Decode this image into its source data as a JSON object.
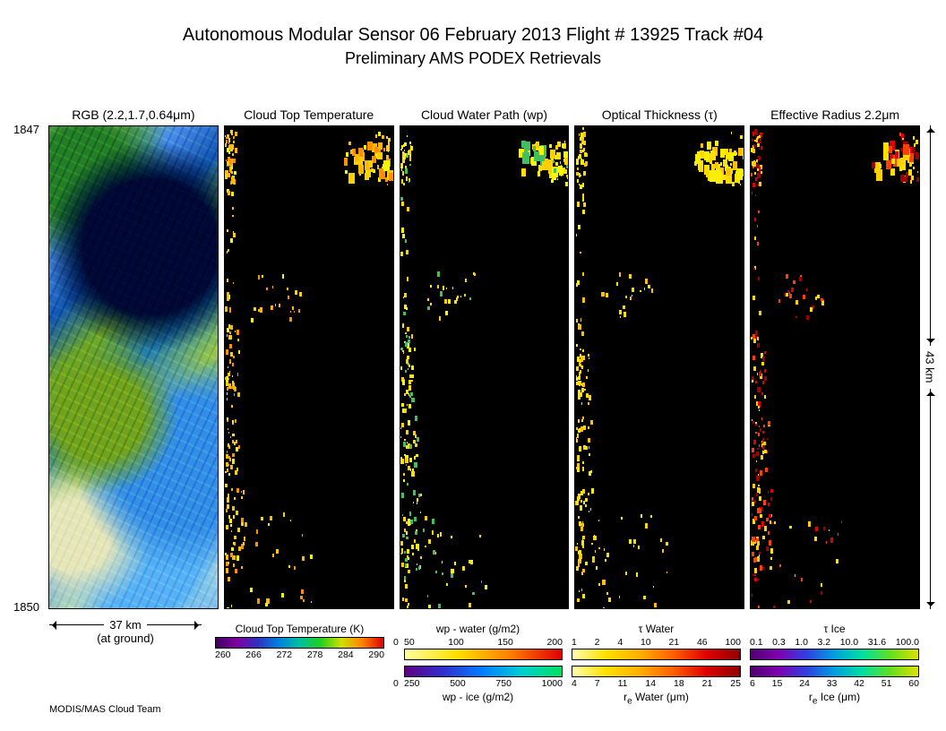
{
  "header": {
    "title": "Autonomous Modular Sensor  06 February 2013  Flight # 13925 Track #04",
    "subtitle": "Preliminary AMS PODEX Retrievals"
  },
  "y_axis": {
    "top_tick": "1847",
    "bottom_tick": "1850"
  },
  "x_scale": {
    "label": "37 km",
    "sublabel": "(at ground)"
  },
  "y_scale": {
    "label": "43 km"
  },
  "footer": "MODIS/MAS Cloud Team",
  "panels": [
    {
      "title": "RGB (2.2,1.7,0.64μm)",
      "kind": "rgb"
    },
    {
      "title": "Cloud Top Temperature",
      "kind": "sparse",
      "palette": "ctt"
    },
    {
      "title": "Cloud Water Path (wp)",
      "kind": "sparse",
      "palette": "wp"
    },
    {
      "title": "Optical Thickness (τ)",
      "kind": "sparse",
      "palette": "tau"
    },
    {
      "title": "Effective Radius 2.2μm",
      "kind": "sparse",
      "palette": "re"
    }
  ],
  "speckle_seed": 13925,
  "speckle_regions": [
    {
      "y": [
        1,
        12
      ],
      "x": [
        0,
        6
      ],
      "density": 35
    },
    {
      "y": [
        1,
        12
      ],
      "x": [
        88,
        100
      ],
      "density": 25
    },
    {
      "y": [
        3,
        10
      ],
      "x": [
        70,
        98
      ],
      "density": 40,
      "big": true
    },
    {
      "y": [
        30,
        40
      ],
      "x": [
        15,
        45
      ],
      "density": 20
    },
    {
      "y": [
        42,
        58
      ],
      "x": [
        0,
        8
      ],
      "density": 30
    },
    {
      "y": [
        60,
        72
      ],
      "x": [
        0,
        10
      ],
      "density": 25
    },
    {
      "y": [
        75,
        92
      ],
      "x": [
        0,
        12
      ],
      "density": 40
    },
    {
      "y": [
        80,
        100
      ],
      "x": [
        12,
        55
      ],
      "density": 25
    },
    {
      "y": [
        0,
        100
      ],
      "x": [
        0,
        5
      ],
      "density": 60
    }
  ],
  "palettes": {
    "ctt": [
      "#ff9000",
      "#ffd000",
      "#f8f800",
      "#ffb800"
    ],
    "wp": [
      "#ffe000",
      "#ffd000",
      "#f8f800",
      "#40c060"
    ],
    "tau": [
      "#ffe000",
      "#ffd800",
      "#f8f000",
      "#ffc000"
    ],
    "re": [
      "#ffe000",
      "#e00000",
      "#a00000",
      "#ff4000",
      "#ffd000"
    ]
  },
  "colorbars": {
    "ctt": {
      "title_bot": "Cloud Top Temperature (K)",
      "ticks": [
        "260",
        "266",
        "272",
        "278",
        "284",
        "290"
      ],
      "gradient": [
        "#400060",
        "#8000a0",
        "#3030c0",
        "#0080e0",
        "#00c0a0",
        "#20d020",
        "#d0e000",
        "#ff8000",
        "#e00000"
      ]
    },
    "wp": {
      "title_top": "wp - water (g/m2)",
      "title_bot": "wp - ice (g/m2)",
      "top_ticks_left": "0",
      "top_ticks": [
        "50",
        "100",
        "150",
        "200"
      ],
      "bot_ticks_left": "0",
      "bot_ticks": [
        "250",
        "500",
        "750",
        "1000"
      ],
      "grad_top": [
        "#ffffa0",
        "#ffe000",
        "#ff8000",
        "#e00000"
      ],
      "grad_bot": [
        "#600080",
        "#3030d0",
        "#0080ff",
        "#00d0d0",
        "#00e060"
      ]
    },
    "tau": {
      "title_top": "τ Water",
      "title_bot_html": "r<sub>e</sub> Water (μm)",
      "top_ticks": [
        "1",
        "2",
        "4",
        "10",
        "21",
        "46",
        "100"
      ],
      "bot_ticks": [
        "4",
        "7",
        "11",
        "14",
        "18",
        "21",
        "25"
      ],
      "grad_top": [
        "#ffffb0",
        "#ffe000",
        "#ffb000",
        "#ff6000",
        "#e00000",
        "#900000"
      ],
      "grad_bot": [
        "#ffffb0",
        "#ffe000",
        "#ffb000",
        "#ff6000",
        "#e00000",
        "#900000"
      ]
    },
    "re": {
      "title_top": "τ Ice",
      "title_bot_html": "r<sub>e</sub> Ice (μm)",
      "top_ticks": [
        "0.1",
        "0.3",
        "1.0",
        "3.2",
        "10.0",
        "31.6",
        "100.0"
      ],
      "bot_ticks": [
        "6",
        "15",
        "24",
        "33",
        "42",
        "51",
        "60"
      ],
      "grad_top": [
        "#500070",
        "#8000b0",
        "#3040e0",
        "#00a0e0",
        "#00e0a0",
        "#60e020",
        "#e0e000"
      ],
      "grad_bot": [
        "#500070",
        "#8000b0",
        "#3040e0",
        "#00a0e0",
        "#00e0a0",
        "#60e020",
        "#e0e000"
      ]
    }
  }
}
